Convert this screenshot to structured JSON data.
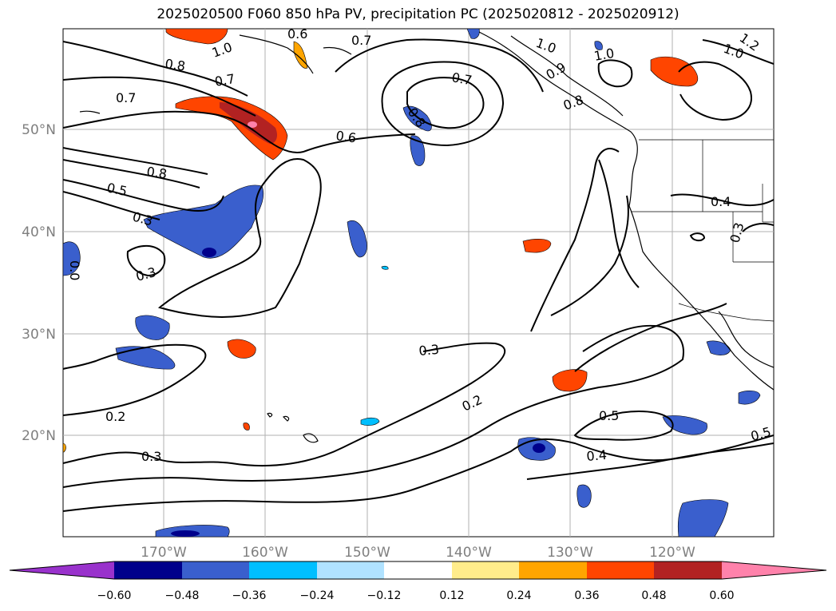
{
  "title": "2025020500 F060 850 hPa PV, precipitation PC (2025020812 - 2025020912)",
  "lat_labels": [
    "50°N",
    "40°N",
    "30°N",
    "20°N"
  ],
  "lon_labels": [
    "170°W",
    "160°W",
    "150°W",
    "140°W",
    "130°W",
    "120°W"
  ],
  "contour_labels": [
    "1.0",
    "0.6",
    "0.7",
    "0.8",
    "0.7",
    "0.7",
    "0.8",
    "0.6",
    "0.8",
    "0.5",
    "0.3",
    "0.3",
    "0.0",
    "0.3",
    "0.2",
    "0.3",
    "0.2",
    "0.5",
    "0.4",
    "0.4",
    "0.3",
    "0.5",
    "1.0",
    "1.0",
    "1.2",
    "1.0",
    "0.7",
    "0.9",
    "0.8"
  ],
  "colorbar": {
    "ticks": [
      "−0.60",
      "−0.48",
      "−0.36",
      "−0.24",
      "−0.12",
      "0.12",
      "0.24",
      "0.36",
      "0.48",
      "0.60"
    ],
    "colors": [
      "#9932cc",
      "#00008b",
      "#3a5fcd",
      "#00bfff",
      "#b0e2ff",
      "#ffffff",
      "#ffec8b",
      "#ffa500",
      "#ff4500",
      "#b22222",
      "#ff82ab"
    ]
  },
  "colors": {
    "land": "#000000",
    "contour": "#000000",
    "grid": "#b0b0b0"
  }
}
